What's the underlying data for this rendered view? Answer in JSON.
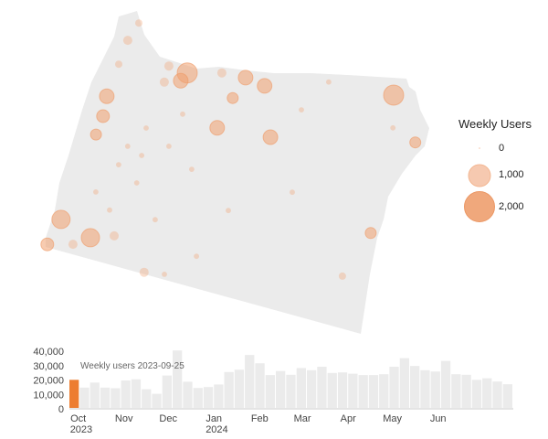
{
  "legend": {
    "title": "Weekly Users",
    "entries": [
      {
        "label": "0",
        "value": 0
      },
      {
        "label": "1,000",
        "value": 1000
      },
      {
        "label": "2,000",
        "value": 2000
      }
    ]
  },
  "colors": {
    "accent": "#ed7d31",
    "bubble_fill": "#f0a070",
    "land": "#ebebeb",
    "bar": "#ebebeb",
    "bar_selected": "#ed7d31"
  },
  "chart_data": [
    {
      "type": "bubble-map",
      "region": "Oregon",
      "size_legend_title": "Weekly Users",
      "bubbles": [
        {
          "lon": -122.25,
          "lat": 45.56,
          "users": 840
        },
        {
          "lon": -122.34,
          "lat": 45.4,
          "users": 440
        },
        {
          "lon": -117.76,
          "lat": 46.14,
          "users": 840
        },
        {
          "lon": -123.81,
          "lat": 44.8,
          "users": 440
        },
        {
          "lon": -120.54,
          "lat": 45.7,
          "users": 440
        },
        {
          "lon": -120.99,
          "lat": 45.75,
          "users": 440
        },
        {
          "lon": -121.29,
          "lat": 44.78,
          "users": 440
        },
        {
          "lon": -120.11,
          "lat": 44.87,
          "users": 440
        },
        {
          "lon": -124.04,
          "lat": 42.53,
          "users": 690
        },
        {
          "lon": -123.31,
          "lat": 42.36,
          "users": 690
        },
        {
          "lon": -124.18,
          "lat": 42.05,
          "users": 340
        },
        {
          "lon": -123.77,
          "lat": 44.45,
          "users": 340
        },
        {
          "lon": -123.81,
          "lat": 44.11,
          "users": 250
        },
        {
          "lon": -117.02,
          "lat": 45.45,
          "users": 250
        },
        {
          "lon": -117.42,
          "lat": 43.73,
          "users": 250
        },
        {
          "lon": -123.7,
          "lat": 45.83,
          "users": 170
        },
        {
          "lon": -121.14,
          "lat": 45.35,
          "users": 250
        },
        {
          "lon": -121.52,
          "lat": 45.72,
          "users": 170
        },
        {
          "lon": -122.68,
          "lat": 45.59,
          "users": 170
        },
        {
          "lon": -123.75,
          "lat": 45.39,
          "users": 110
        },
        {
          "lon": -123.57,
          "lat": 46.17,
          "users": 110
        },
        {
          "lon": -123.64,
          "lat": 42.17,
          "users": 170
        },
        {
          "lon": -121.97,
          "lat": 42.03,
          "users": 170
        },
        {
          "lon": -122.82,
          "lat": 42.5,
          "users": 170
        },
        {
          "lon": -117.76,
          "lat": 42.88,
          "users": 110
        },
        {
          "lon": -122.68,
          "lat": 45.3,
          "users": 170
        },
        {
          "lon": -122.72,
          "lat": 43.97,
          "users": 60
        },
        {
          "lon": -123.07,
          "lat": 44.06,
          "users": 60
        },
        {
          "lon": -122.66,
          "lat": 43.49,
          "users": 60
        },
        {
          "lon": -122.05,
          "lat": 42.96,
          "users": 60
        },
        {
          "lon": -122.79,
          "lat": 44.45,
          "users": 60
        },
        {
          "lon": -122.2,
          "lat": 44.25,
          "users": 60
        },
        {
          "lon": -121.58,
          "lat": 43.97,
          "users": 60
        },
        {
          "lon": -123.15,
          "lat": 43.71,
          "users": 60
        },
        {
          "lon": -123.47,
          "lat": 43.15,
          "users": 60
        },
        {
          "lon": -122.1,
          "lat": 44.85,
          "users": 60
        },
        {
          "lon": -119.62,
          "lat": 45.47,
          "users": 60
        },
        {
          "lon": -120.56,
          "lat": 43.45,
          "users": 60
        },
        {
          "lon": -119.32,
          "lat": 44.05,
          "users": 60
        },
        {
          "lon": -120.96,
          "lat": 42.54,
          "users": 60
        },
        {
          "lon": -121.53,
          "lat": 42.09,
          "users": 60
        },
        {
          "lon": -117.58,
          "lat": 45.59,
          "users": 60
        },
        {
          "lon": -119.21,
          "lat": 46.06,
          "users": 60
        },
        {
          "lon": -123.07,
          "lat": 42.91,
          "users": 60
        }
      ]
    },
    {
      "type": "bar",
      "annotation": "Weekly users 2023-09-25",
      "start_week": "2023-09-25",
      "selected_index": 0,
      "ylim": [
        0,
        40000
      ],
      "yticks": [
        "0",
        "10,000",
        "20,000",
        "30,000",
        "40,000"
      ],
      "ytick_values": [
        0,
        10000,
        20000,
        30000,
        40000
      ],
      "xticks": [
        {
          "label": "Oct",
          "sublabel": "2023",
          "date": "2023-10-01"
        },
        {
          "label": "Nov",
          "sublabel": "",
          "date": "2023-11-01"
        },
        {
          "label": "Dec",
          "sublabel": "",
          "date": "2023-12-01"
        },
        {
          "label": "Jan",
          "sublabel": "2024",
          "date": "2024-01-01"
        },
        {
          "label": "Feb",
          "sublabel": "",
          "date": "2024-02-01"
        },
        {
          "label": "Mar",
          "sublabel": "",
          "date": "2024-03-01"
        },
        {
          "label": "Apr",
          "sublabel": "",
          "date": "2024-04-01"
        },
        {
          "label": "May",
          "sublabel": "",
          "date": "2024-05-01"
        },
        {
          "label": "Jun",
          "sublabel": "",
          "date": "2024-06-01"
        }
      ],
      "values": [
        20100,
        14700,
        18200,
        14700,
        14300,
        19700,
        20500,
        13600,
        10400,
        23100,
        40500,
        18800,
        14500,
        15100,
        16900,
        25500,
        27200,
        37400,
        31600,
        23400,
        26200,
        23600,
        28300,
        26800,
        29200,
        24900,
        25300,
        24400,
        23400,
        23400,
        24000,
        29200,
        35200,
        29800,
        26800,
        25900,
        33300,
        24000,
        23600,
        20100,
        21200,
        19000,
        17100
      ]
    }
  ]
}
